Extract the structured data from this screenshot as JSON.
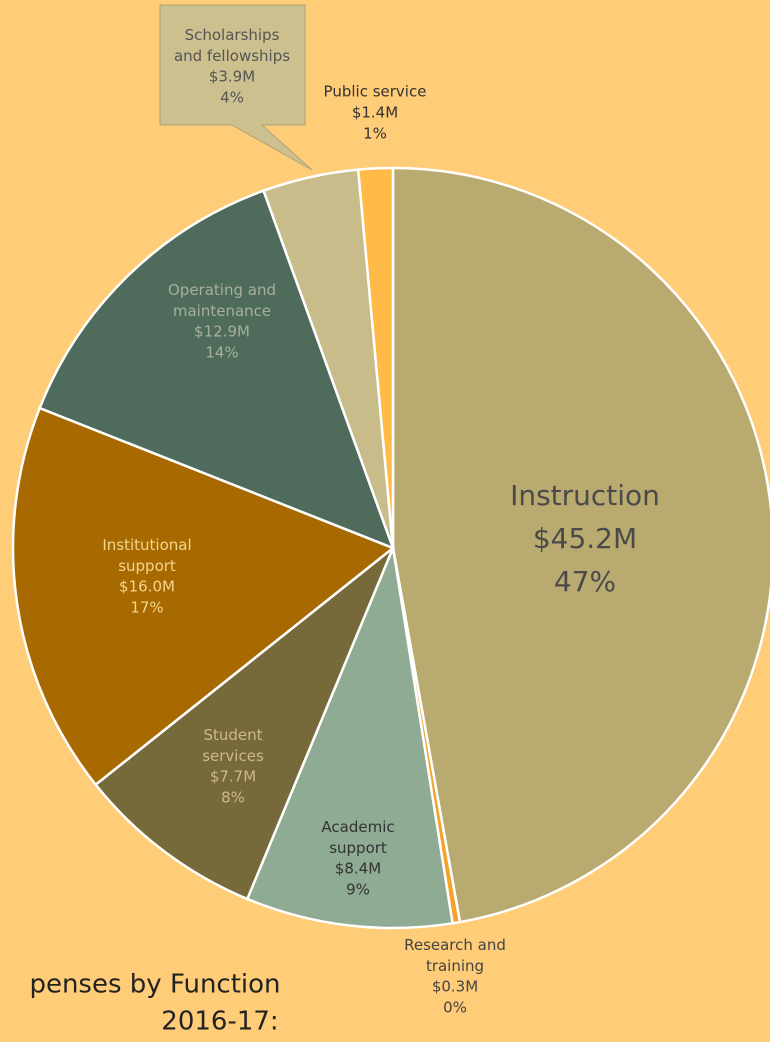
{
  "chart_data": {
    "type": "pie",
    "title_lines": [
      "penses by Function",
      "2016-17:"
    ],
    "categories": [
      "Instruction",
      "Research and training",
      "Academic support",
      "Student services",
      "Institutional support",
      "Operating and maintenance",
      "Scholarships and fellowships",
      "Public service"
    ],
    "values": [
      45.2,
      0.3,
      8.4,
      7.7,
      16.0,
      12.9,
      3.9,
      1.4
    ],
    "value_labels": [
      "$45.2M",
      "$0.3M",
      "$8.4M",
      "$7.7M",
      "$16.0M",
      "$12.9M",
      "$3.9M",
      "$1.4M"
    ],
    "percent_labels": [
      "47%",
      "0%",
      "9%",
      "8%",
      "17%",
      "14%",
      "4%",
      "1%"
    ],
    "colors": [
      "#b9aa6f",
      "#f5a22c",
      "#8fab93",
      "#776a3a",
      "#a86a00",
      "#4f6b5b",
      "#c8bc8a",
      "#ffba48"
    ]
  }
}
